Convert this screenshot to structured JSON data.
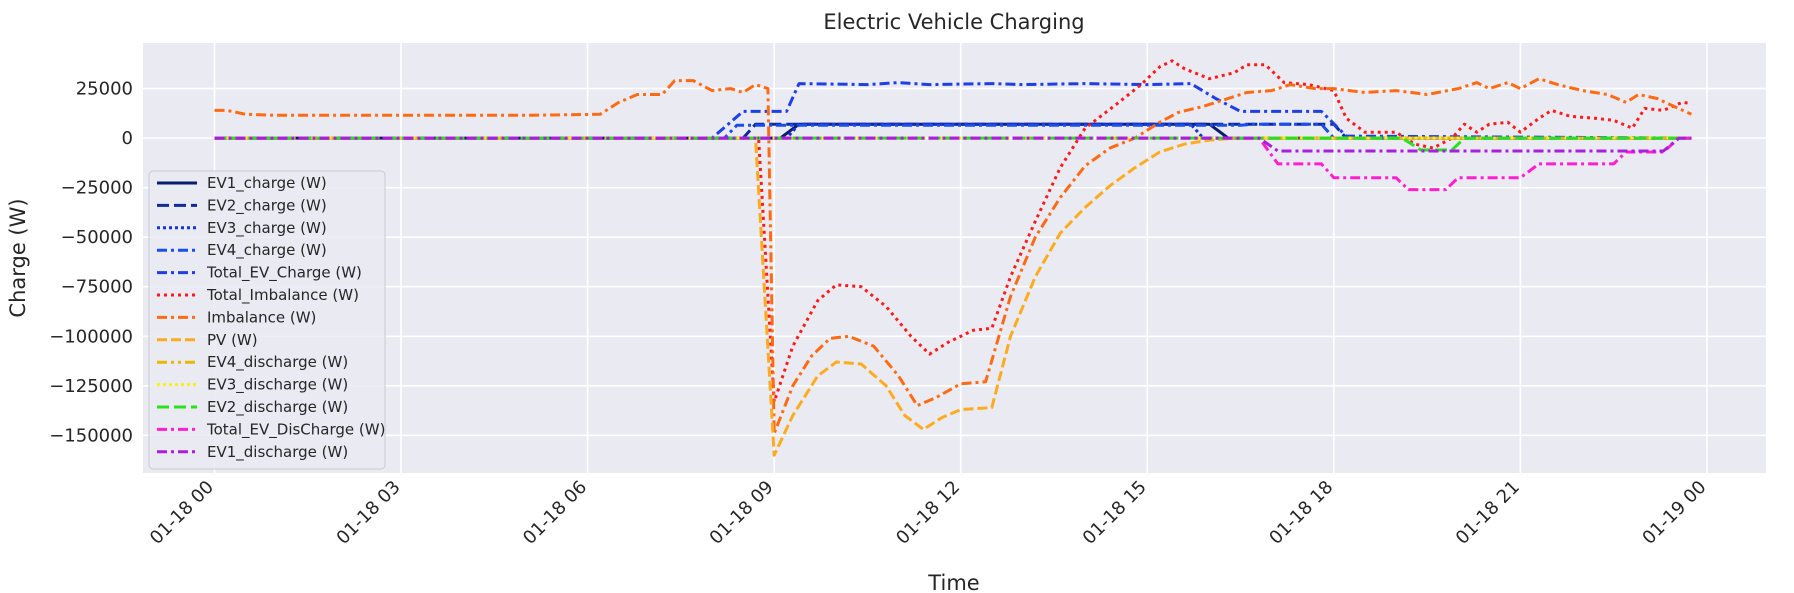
{
  "chart_data": {
    "type": "line",
    "title": "Electric Vehicle Charging",
    "xlabel": "Time",
    "ylabel": "Charge (W)",
    "x_unit": "hours from 01-18 00:00",
    "x_ticks": [
      {
        "v": 0,
        "label": "01-18 00"
      },
      {
        "v": 3,
        "label": "01-18 03"
      },
      {
        "v": 6,
        "label": "01-18 06"
      },
      {
        "v": 9,
        "label": "01-18 09"
      },
      {
        "v": 12,
        "label": "01-18 12"
      },
      {
        "v": 15,
        "label": "01-18 15"
      },
      {
        "v": 18,
        "label": "01-18 18"
      },
      {
        "v": 21,
        "label": "01-18 21"
      },
      {
        "v": 24,
        "label": "01-19 00"
      }
    ],
    "y_ticks": [
      {
        "v": 25000,
        "label": "25000"
      },
      {
        "v": 0,
        "label": "0"
      },
      {
        "v": -25000,
        "label": "−25000"
      },
      {
        "v": -50000,
        "label": "−50000"
      },
      {
        "v": -75000,
        "label": "−75000"
      },
      {
        "v": -100000,
        "label": "−100000"
      },
      {
        "v": -125000,
        "label": "−125000"
      },
      {
        "v": -150000,
        "label": "−150000"
      }
    ],
    "xlim": [
      -1.15,
      24.95
    ],
    "ylim": [
      -169000,
      48000
    ],
    "grid": true,
    "legend_position": "lower-left",
    "series": [
      {
        "name": "EV1_charge (W)",
        "color": "#0b1d6e",
        "dash": "",
        "width": 3,
        "points": [
          [
            0,
            0
          ],
          [
            9.1,
            0
          ],
          [
            9.4,
            7000
          ],
          [
            16,
            7000
          ],
          [
            16.3,
            0
          ],
          [
            23.75,
            0
          ]
        ]
      },
      {
        "name": "EV2_charge (W)",
        "color": "#0d2a9c",
        "dash": "12,5",
        "width": 3,
        "points": [
          [
            0,
            0
          ],
          [
            8.5,
            0
          ],
          [
            8.7,
            7000
          ],
          [
            18,
            7000
          ],
          [
            18.2,
            0
          ],
          [
            23.75,
            0
          ]
        ]
      },
      {
        "name": "EV3_charge (W)",
        "color": "#1433d6",
        "dash": "3,3",
        "width": 3,
        "points": [
          [
            0,
            0
          ],
          [
            9.2,
            0
          ],
          [
            9.4,
            7000
          ],
          [
            15.7,
            7000
          ],
          [
            15.9,
            0
          ],
          [
            23.75,
            0
          ]
        ]
      },
      {
        "name": "EV4_charge (W)",
        "color": "#1a4cf0",
        "dash": "10,4,3,4",
        "width": 3,
        "points": [
          [
            0,
            0
          ],
          [
            8.2,
            0
          ],
          [
            8.4,
            6500
          ],
          [
            16.5,
            6500
          ],
          [
            16.7,
            7000
          ],
          [
            17.8,
            7000
          ],
          [
            18,
            0
          ],
          [
            23.75,
            0
          ]
        ]
      },
      {
        "name": "Total_EV_Charge (W)",
        "color": "#1f3fe6",
        "dash": "10,4,3,4",
        "width": 3,
        "points": [
          [
            0,
            0
          ],
          [
            8,
            0
          ],
          [
            8.5,
            13500
          ],
          [
            9.2,
            13500
          ],
          [
            9.4,
            27500
          ],
          [
            10.5,
            27000
          ],
          [
            11,
            28000
          ],
          [
            11.5,
            27000
          ],
          [
            12.5,
            27500
          ],
          [
            13,
            27000
          ],
          [
            14,
            27500
          ],
          [
            15,
            27000
          ],
          [
            15.7,
            27500
          ],
          [
            16.1,
            20000
          ],
          [
            16.5,
            13500
          ],
          [
            17.8,
            13500
          ],
          [
            18.2,
            1000
          ],
          [
            23.75,
            0
          ]
        ]
      },
      {
        "name": "Total_Imbalance (W)",
        "color": "#ff1a1a",
        "dash": "3,4",
        "width": 3,
        "points": [
          [
            0,
            0
          ],
          [
            8.75,
            0
          ],
          [
            9,
            -133000
          ],
          [
            9.3,
            -105000
          ],
          [
            9.7,
            -82000
          ],
          [
            10,
            -74000
          ],
          [
            10.4,
            -75000
          ],
          [
            10.8,
            -85000
          ],
          [
            11.2,
            -100000
          ],
          [
            11.5,
            -109000
          ],
          [
            11.8,
            -103000
          ],
          [
            12.2,
            -97000
          ],
          [
            12.5,
            -96000
          ],
          [
            12.8,
            -70000
          ],
          [
            13.2,
            -42000
          ],
          [
            13.6,
            -15000
          ],
          [
            14,
            5000
          ],
          [
            14.5,
            17000
          ],
          [
            14.9,
            27000
          ],
          [
            15.2,
            36000
          ],
          [
            15.4,
            39000
          ],
          [
            15.6,
            35000
          ],
          [
            16,
            30000
          ],
          [
            16.4,
            33000
          ],
          [
            16.6,
            37000
          ],
          [
            16.9,
            37000
          ],
          [
            17.2,
            28000
          ],
          [
            17.6,
            27000
          ],
          [
            18,
            24000
          ],
          [
            18.2,
            10000
          ],
          [
            18.5,
            3000
          ],
          [
            19,
            3000
          ],
          [
            19.3,
            -3000
          ],
          [
            19.6,
            -5000
          ],
          [
            19.9,
            0
          ],
          [
            20.1,
            7000
          ],
          [
            20.3,
            3000
          ],
          [
            20.5,
            7000
          ],
          [
            20.8,
            8000
          ],
          [
            21,
            3000
          ],
          [
            21.3,
            10000
          ],
          [
            21.5,
            14000
          ],
          [
            21.8,
            11000
          ],
          [
            22.2,
            10000
          ],
          [
            22.5,
            9000
          ],
          [
            22.8,
            5000
          ],
          [
            23,
            15000
          ],
          [
            23.3,
            14000
          ],
          [
            23.6,
            18000
          ],
          [
            23.75,
            17500
          ]
        ]
      },
      {
        "name": "Imbalance (W)",
        "color": "#ff6a13",
        "dash": "10,4,3,4",
        "width": 3,
        "points": [
          [
            0,
            14000
          ],
          [
            0.2,
            14000
          ],
          [
            0.5,
            12000
          ],
          [
            1,
            11500
          ],
          [
            3,
            11500
          ],
          [
            5,
            11500
          ],
          [
            6.2,
            12000
          ],
          [
            6.5,
            18000
          ],
          [
            6.8,
            22000
          ],
          [
            7.2,
            22000
          ],
          [
            7.4,
            29000
          ],
          [
            7.7,
            29000
          ],
          [
            8,
            24000
          ],
          [
            8.3,
            25000
          ],
          [
            8.5,
            23000
          ],
          [
            8.7,
            27000
          ],
          [
            8.9,
            25000
          ],
          [
            9,
            -149000
          ],
          [
            9.3,
            -125000
          ],
          [
            9.6,
            -110000
          ],
          [
            9.9,
            -101000
          ],
          [
            10.2,
            -100000
          ],
          [
            10.6,
            -105000
          ],
          [
            11,
            -120000
          ],
          [
            11.3,
            -135000
          ],
          [
            11.6,
            -131000
          ],
          [
            12,
            -124000
          ],
          [
            12.4,
            -123000
          ],
          [
            12.8,
            -80000
          ],
          [
            13.2,
            -50000
          ],
          [
            13.6,
            -30000
          ],
          [
            14,
            -14000
          ],
          [
            14.4,
            -5000
          ],
          [
            14.8,
            0
          ],
          [
            15.2,
            8000
          ],
          [
            15.5,
            13000
          ],
          [
            15.9,
            16000
          ],
          [
            16.3,
            20000
          ],
          [
            16.6,
            23000
          ],
          [
            17,
            24000
          ],
          [
            17.3,
            27000
          ],
          [
            17.7,
            25000
          ],
          [
            18,
            25000
          ],
          [
            18.5,
            23000
          ],
          [
            19,
            24000
          ],
          [
            19.5,
            22000
          ],
          [
            20,
            25000
          ],
          [
            20.3,
            28000
          ],
          [
            20.5,
            25000
          ],
          [
            20.8,
            28000
          ],
          [
            21,
            25000
          ],
          [
            21.3,
            30000
          ],
          [
            21.6,
            27000
          ],
          [
            22,
            24000
          ],
          [
            22.4,
            22000
          ],
          [
            22.7,
            18000
          ],
          [
            22.9,
            22000
          ],
          [
            23.2,
            20000
          ],
          [
            23.4,
            17000
          ],
          [
            23.75,
            12000
          ]
        ]
      },
      {
        "name": "PV (W)",
        "color": "#ffab1f",
        "dash": "10,4",
        "width": 3,
        "points": [
          [
            0,
            0
          ],
          [
            8.7,
            0
          ],
          [
            9,
            -160000
          ],
          [
            9.3,
            -140000
          ],
          [
            9.7,
            -120000
          ],
          [
            10,
            -113000
          ],
          [
            10.4,
            -114000
          ],
          [
            10.8,
            -125000
          ],
          [
            11.1,
            -140000
          ],
          [
            11.4,
            -147000
          ],
          [
            11.7,
            -141000
          ],
          [
            12,
            -137000
          ],
          [
            12.5,
            -136000
          ],
          [
            12.8,
            -100000
          ],
          [
            13.2,
            -70000
          ],
          [
            13.6,
            -48000
          ],
          [
            14,
            -35000
          ],
          [
            14.4,
            -24000
          ],
          [
            14.8,
            -15000
          ],
          [
            15.2,
            -7000
          ],
          [
            15.6,
            -3000
          ],
          [
            16,
            -1000
          ],
          [
            16.4,
            0
          ],
          [
            23.75,
            0
          ]
        ]
      },
      {
        "name": "EV4_discharge (W)",
        "color": "#e6b800",
        "dash": "10,4,3,4,3,4",
        "width": 3,
        "points": [
          [
            0,
            0
          ],
          [
            23.75,
            0
          ]
        ]
      },
      {
        "name": "EV3_discharge (W)",
        "color": "#f7ef1a",
        "dash": "3,3",
        "width": 3,
        "points": [
          [
            0,
            0
          ],
          [
            23.75,
            0
          ]
        ]
      },
      {
        "name": "EV2_discharge (W)",
        "color": "#2be01f",
        "dash": "12,5",
        "width": 3,
        "points": [
          [
            0,
            0
          ],
          [
            19.1,
            0
          ],
          [
            19.4,
            -6000
          ],
          [
            19.9,
            -6000
          ],
          [
            20.1,
            0
          ],
          [
            23.75,
            0
          ]
        ]
      },
      {
        "name": "Total_EV_DisCharge (W)",
        "color": "#ff1fd1",
        "dash": "10,4,3,4",
        "width": 3,
        "points": [
          [
            0,
            0
          ],
          [
            16.8,
            0
          ],
          [
            17.1,
            -13000
          ],
          [
            17.8,
            -13000
          ],
          [
            18,
            -20000
          ],
          [
            19,
            -20000
          ],
          [
            19.2,
            -26000
          ],
          [
            19.8,
            -26000
          ],
          [
            20,
            -20000
          ],
          [
            21,
            -20000
          ],
          [
            21.3,
            -13000
          ],
          [
            22.5,
            -13000
          ],
          [
            22.7,
            -7000
          ],
          [
            23.3,
            -7000
          ],
          [
            23.55,
            0
          ],
          [
            23.75,
            0
          ]
        ]
      },
      {
        "name": "EV1_discharge (W)",
        "color": "#a81fe0",
        "dash": "10,4,3,4",
        "width": 3,
        "points": [
          [
            0,
            0
          ],
          [
            16.8,
            0
          ],
          [
            17.1,
            -6500
          ],
          [
            23.3,
            -6500
          ],
          [
            23.55,
            0
          ],
          [
            23.75,
            0
          ]
        ]
      }
    ]
  }
}
